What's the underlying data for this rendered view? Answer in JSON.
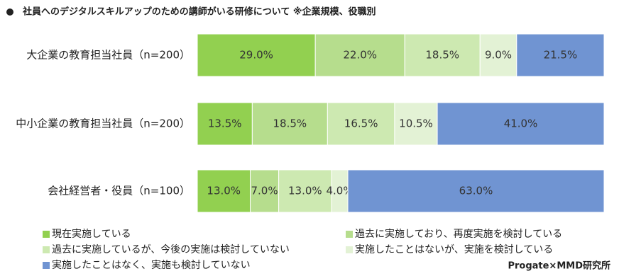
{
  "chart_data": {
    "type": "stacked-bar-horizontal",
    "title": "社員へのデジタルスキルアップのための講師がいる研修について ※企業規模、役職別",
    "categories": [
      "大企業の教育担当社員（n=200）",
      "中小企業の教育担当社員（n=200）",
      "会社経営者・役員（n=100）"
    ],
    "xlim": [
      0,
      100
    ],
    "series": [
      {
        "name": "現在実施している",
        "color": "#92d050",
        "values": [
          29,
          13.5,
          13
        ],
        "value_labels": [
          "29.0%",
          "13.5%",
          "13.0%"
        ]
      },
      {
        "name": "過去に実施しており、再度実施を検討している",
        "color": "#b6dd8d",
        "values": [
          22,
          18.5,
          7
        ],
        "value_labels": [
          "22.0%",
          "18.5%",
          "7.0%"
        ]
      },
      {
        "name": "過去に実施しているが、今後の実施は検討していない",
        "color": "#cde9b1",
        "values": [
          18.5,
          16.5,
          13
        ],
        "value_labels": [
          "18.5%",
          "16.5%",
          "13.0%"
        ]
      },
      {
        "name": "実施したことはないが、実施を検討している",
        "color": "#e3f2d5",
        "values": [
          9,
          10.5,
          4
        ],
        "value_labels": [
          "9.0%",
          "10.5%",
          "4.0%"
        ]
      },
      {
        "name": "実施したことはなく、実施も検討していない",
        "color": "#7094d2",
        "values": [
          21.5,
          41,
          63
        ],
        "value_labels": [
          "21.5%",
          "41.0%",
          "63.0%"
        ]
      }
    ],
    "source": "Progate×MMD研究所"
  }
}
